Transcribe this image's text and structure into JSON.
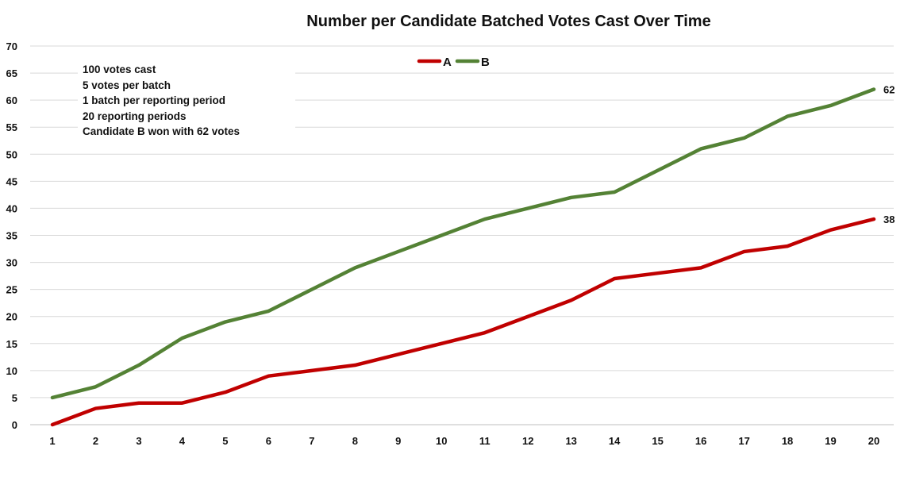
{
  "chart_data": {
    "type": "line",
    "title": "Number per Candidate Batched Votes Cast Over Time",
    "xlabel": "",
    "ylabel": "",
    "x": [
      1,
      2,
      3,
      4,
      5,
      6,
      7,
      8,
      9,
      10,
      11,
      12,
      13,
      14,
      15,
      16,
      17,
      18,
      19,
      20
    ],
    "ylim": [
      0,
      70
    ],
    "yticks": [
      0,
      5,
      10,
      15,
      20,
      25,
      30,
      35,
      40,
      45,
      50,
      55,
      60,
      65,
      70
    ],
    "grid": true,
    "legend_position": "top-center",
    "series": [
      {
        "name": "A",
        "color": "#C00000",
        "values": [
          0,
          3,
          4,
          4,
          6,
          9,
          10,
          11,
          13,
          15,
          17,
          20,
          23,
          27,
          28,
          29,
          32,
          33,
          36,
          38
        ],
        "end_label": "38"
      },
      {
        "name": "B",
        "color": "#548235",
        "values": [
          5,
          7,
          11,
          16,
          19,
          21,
          25,
          29,
          32,
          35,
          38,
          40,
          42,
          43,
          47,
          51,
          53,
          57,
          59,
          62
        ],
        "end_label": "62"
      }
    ],
    "annotation_lines": [
      "100 votes cast",
      "5 votes per batch",
      "1 batch per reporting period",
      "20 reporting periods",
      "Candidate B won with 62 votes"
    ]
  }
}
